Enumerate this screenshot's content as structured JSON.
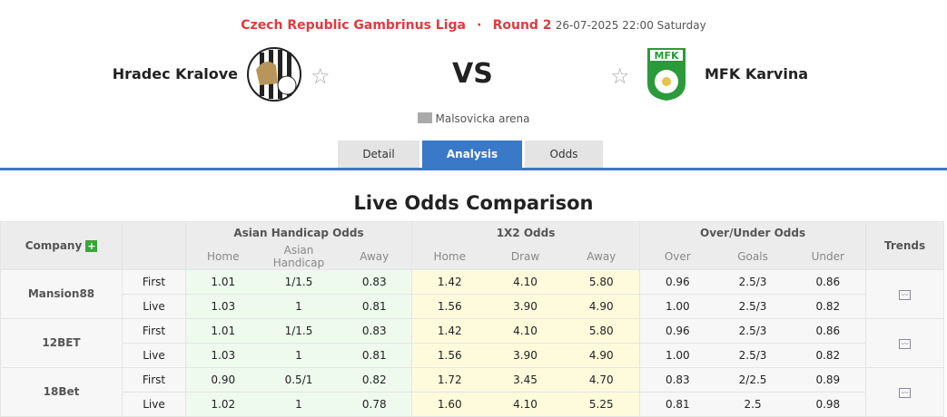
{
  "match": {
    "league": "Czech Republic Gambrinus Liga",
    "round": "Round 2",
    "datetime": "26-07-2025 22:00 Saturday",
    "home": "Hradec Kralove",
    "away": "MFK Karvina",
    "vs": "VS",
    "venue": "Malsovicka arena",
    "away_logo_text": "MFK"
  },
  "tabs": [
    "Detail",
    "Analysis",
    "Odds"
  ],
  "title": "Live Odds Comparison",
  "headers": {
    "company": "Company",
    "ah": "Asian Handicap Odds",
    "x12": "1X2 Odds",
    "ou": "Over/Under Odds",
    "trends": "Trends",
    "sub": [
      "Home",
      "Asian Handicap",
      "Away",
      "Home",
      "Draw",
      "Away",
      "Over",
      "Goals",
      "Under"
    ]
  },
  "rows": [
    {
      "company": "Mansion88",
      "first": [
        "1.01",
        "1/1.5",
        "0.83",
        "1.42",
        "4.10",
        "5.80",
        "0.96",
        "2.5/3",
        "0.86"
      ],
      "live": [
        "1.03",
        "1",
        "0.81",
        "1.56",
        "3.90",
        "4.90",
        "1.00",
        "2.5/3",
        "0.82"
      ]
    },
    {
      "company": "12BET",
      "first": [
        "1.01",
        "1/1.5",
        "0.83",
        "1.42",
        "4.10",
        "5.80",
        "0.96",
        "2.5/3",
        "0.86"
      ],
      "live": [
        "1.03",
        "1",
        "0.81",
        "1.56",
        "3.90",
        "4.90",
        "1.00",
        "2.5/3",
        "0.82"
      ]
    },
    {
      "company": "18Bet",
      "first": [
        "0.90",
        "0.5/1",
        "0.82",
        "1.72",
        "3.45",
        "4.70",
        "0.83",
        "2/2.5",
        "0.89"
      ],
      "live": [
        "1.02",
        "1",
        "0.78",
        "1.60",
        "4.10",
        "5.25",
        "0.81",
        "2.5",
        "0.98"
      ]
    }
  ],
  "labels": {
    "first": "First",
    "live": "Live"
  }
}
